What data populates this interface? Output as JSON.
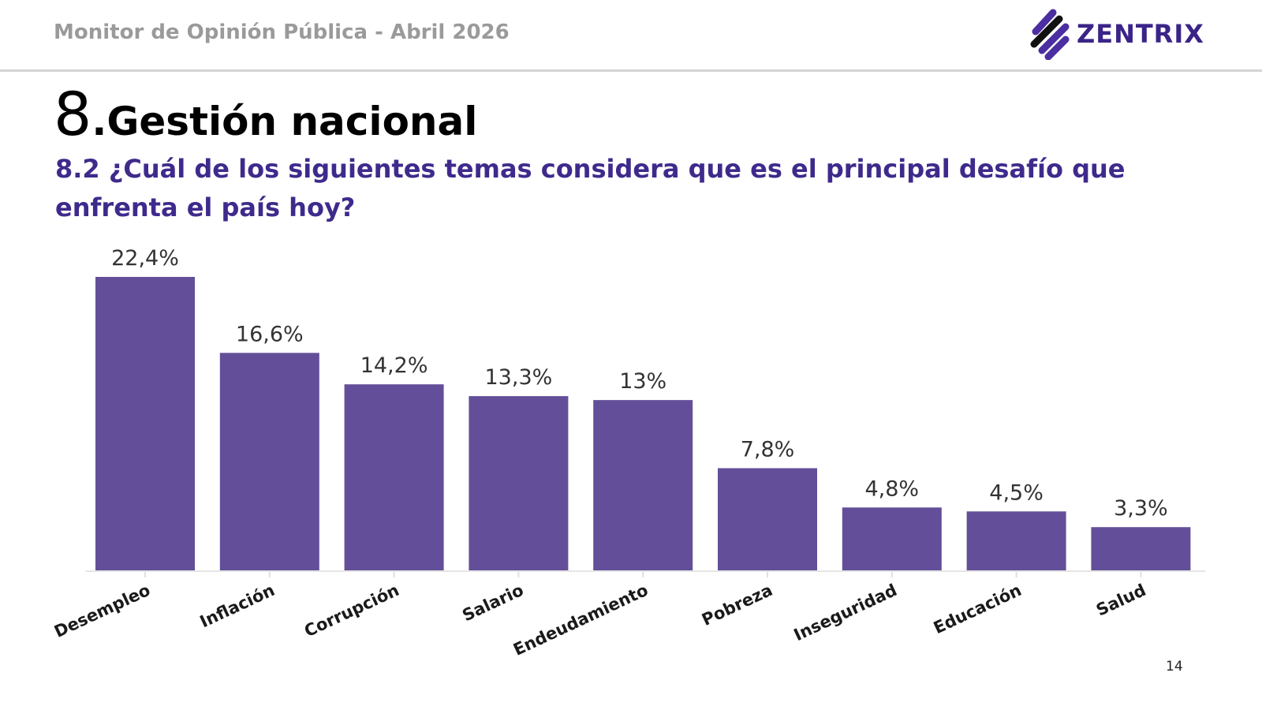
{
  "header": {
    "report_title": "Monitor de Opinión Pública - Abril 2026",
    "brand": "ZENTRIX",
    "page_number": "14"
  },
  "section": {
    "number": "8",
    "title": ".Gestión nacional"
  },
  "question": "8.2 ¿Cuál de los siguientes temas considera que es el principal desafío que enfrenta el país hoy?",
  "colors": {
    "bar": "#634f99",
    "question": "#3f2a8c",
    "brand": "#3b2488"
  },
  "chart_data": {
    "type": "bar",
    "title": "8.2 ¿Cuál de los siguientes temas considera que es el principal desafío que enfrenta el país hoy?",
    "categories": [
      "Desempleo",
      "Inflación",
      "Corrupción",
      "Salario",
      "Endeudamiento",
      "Pobreza",
      "Inseguridad",
      "Educación",
      "Salud"
    ],
    "values": [
      22.4,
      16.6,
      14.2,
      13.3,
      13,
      7.8,
      4.8,
      4.5,
      3.3
    ],
    "labels": [
      "22,4%",
      "16,6%",
      "14,2%",
      "13,3%",
      "13%",
      "7,8%",
      "4,8%",
      "4,5%",
      "3,3%"
    ],
    "xlabel": "",
    "ylabel": "",
    "ylim": [
      0,
      22.4
    ],
    "grid": false,
    "legend": "none"
  }
}
